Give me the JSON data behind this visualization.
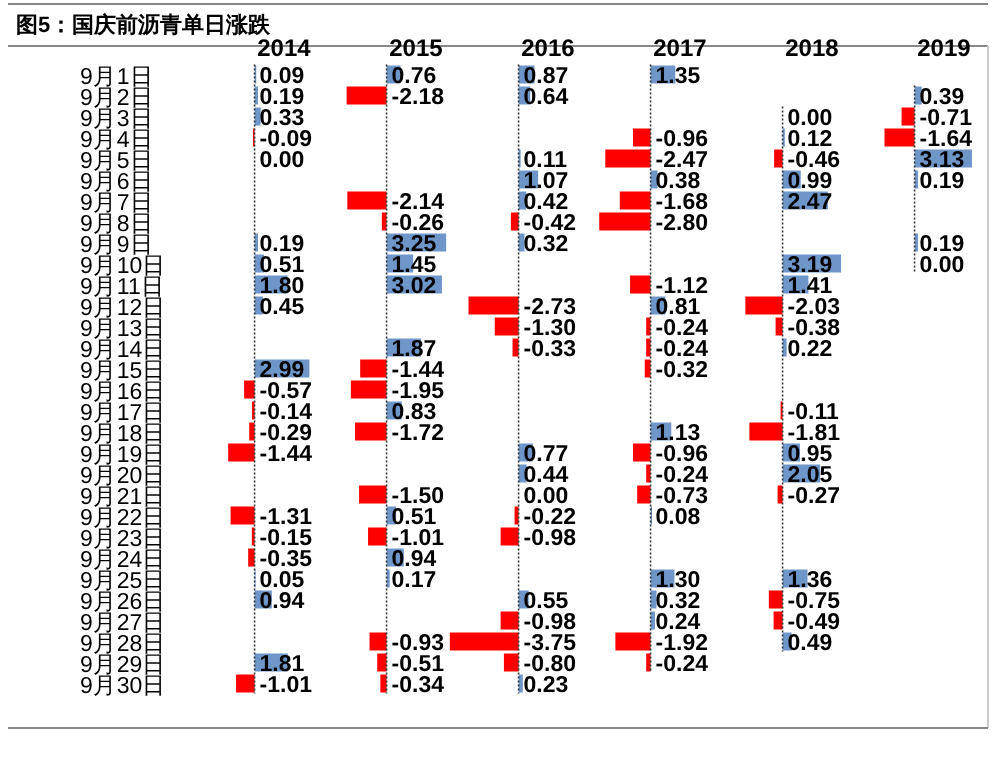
{
  "chart_data": [
    {
      "type": "bar",
      "orientation": "horizontal",
      "title": "图5：国庆前沥青单日涨跌",
      "subtitle": "2014",
      "tick_labels": "y",
      "ref_lines": [
        {
          "axis": "x",
          "value": 0,
          "line_style": "dotted",
          "color": "#333333"
        }
      ],
      "categories": [
        "9月1日",
        "9月2日",
        "9月3日",
        "9月4日",
        "9月5日",
        "9月6日",
        "9月7日",
        "9月8日",
        "9月9日",
        "9月10日",
        "9月11日",
        "9月12日",
        "9月13日",
        "9月14日",
        "9月15日",
        "9月16日",
        "9月17日",
        "9月18日",
        "9月19日",
        "9月20日",
        "9月21日",
        "9月22日",
        "9月23日",
        "9月24日",
        "9月25日",
        "9月26日",
        "9月27日",
        "9月28日",
        "9月29日",
        "9月30日"
      ],
      "values": [
        0.09,
        0.19,
        0.33,
        -0.09,
        0.0,
        null,
        null,
        null,
        0.19,
        0.51,
        1.8,
        0.45,
        null,
        null,
        2.99,
        -0.57,
        -0.14,
        -0.29,
        -1.44,
        null,
        null,
        -1.31,
        -0.15,
        -0.35,
        0.05,
        0.94,
        null,
        null,
        1.81,
        -1.01
      ],
      "value_labels": [
        "0.09",
        "0.19",
        "0.33",
        "-0.09",
        "0.00",
        null,
        null,
        null,
        "0.19",
        "0.51",
        "1.80",
        "0.45",
        null,
        null,
        "2.99",
        "-0.57",
        "-0.14",
        "-0.29",
        "-1.44",
        null,
        null,
        "-1.31",
        "-0.15",
        "-0.35",
        "0.05",
        "0.94",
        null,
        null,
        "1.81",
        "-1.01"
      ],
      "colors": [
        "#6f96c9",
        "#6f96c9",
        "#6f96c9",
        "#ff0000",
        "#6f96c9",
        null,
        null,
        null,
        "#6f96c9",
        "#6f96c9",
        "#6f96c9",
        "#6f96c9",
        null,
        null,
        "#6f96c9",
        "#ff0000",
        "#ff0000",
        "#ff0000",
        "#ff0000",
        null,
        null,
        "#ff0000",
        "#ff0000",
        "#ff0000",
        "#6f96c9",
        "#6f96c9",
        null,
        null,
        "#6f96c9",
        "#ff0000"
      ]
    },
    {
      "type": "bar",
      "orientation": "horizontal",
      "subtitle": "2015",
      "tick_labels": false,
      "ref_lines": [
        {
          "axis": "x",
          "value": 0,
          "line_style": "dotted",
          "color": "#333333"
        }
      ],
      "values": [
        0.76,
        -2.18,
        null,
        null,
        null,
        null,
        -2.14,
        -0.26,
        3.25,
        1.45,
        3.02,
        null,
        null,
        1.87,
        -1.44,
        -1.95,
        0.83,
        -1.72,
        null,
        null,
        -1.5,
        0.51,
        -1.01,
        0.94,
        0.17,
        null,
        null,
        -0.93,
        -0.51,
        -0.34
      ],
      "value_labels": [
        "0.76",
        "-2.18",
        null,
        null,
        null,
        null,
        "-2.14",
        "-0.26",
        "3.25",
        "1.45",
        "3.02",
        null,
        null,
        "1.87",
        "-1.44",
        "-1.95",
        "0.83",
        "-1.72",
        null,
        null,
        "-1.50",
        "0.51",
        "-1.01",
        "0.94",
        "0.17",
        null,
        null,
        "-0.93",
        "-0.51",
        "-0.34"
      ],
      "colors": [
        "#6f96c9",
        "#ff0000",
        null,
        null,
        null,
        null,
        "#ff0000",
        "#ff0000",
        "#6f96c9",
        "#6f96c9",
        "#6f96c9",
        null,
        null,
        "#6f96c9",
        "#ff0000",
        "#ff0000",
        "#6f96c9",
        "#ff0000",
        null,
        null,
        "#ff0000",
        "#6f96c9",
        "#ff0000",
        "#6f96c9",
        "#6f96c9",
        null,
        null,
        "#ff0000",
        "#ff0000",
        "#ff0000"
      ]
    },
    {
      "type": "bar",
      "orientation": "horizontal",
      "subtitle": "2016",
      "tick_labels": false,
      "ref_lines": [
        {
          "axis": "x",
          "value": 0,
          "line_style": "dotted",
          "color": "#333333"
        }
      ],
      "values": [
        0.87,
        0.64,
        null,
        null,
        0.11,
        1.07,
        0.42,
        -0.42,
        0.32,
        null,
        null,
        -2.73,
        -1.3,
        -0.33,
        null,
        null,
        null,
        null,
        0.77,
        0.44,
        0.0,
        -0.22,
        -0.98,
        null,
        null,
        0.55,
        -0.98,
        -3.75,
        -0.8,
        0.23
      ],
      "value_labels": [
        "0.87",
        "0.64",
        null,
        null,
        "0.11",
        "1.07",
        "0.42",
        "-0.42",
        "0.32",
        null,
        null,
        "-2.73",
        "-1.30",
        "-0.33",
        null,
        null,
        null,
        null,
        "0.77",
        "0.44",
        "0.00",
        "-0.22",
        "-0.98",
        null,
        null,
        "0.55",
        "-0.98",
        "-3.75",
        "-0.80",
        "0.23"
      ],
      "colors": [
        "#6f96c9",
        "#6f96c9",
        null,
        null,
        "#6f96c9",
        "#6f96c9",
        "#6f96c9",
        "#ff0000",
        "#6f96c9",
        null,
        null,
        "#ff0000",
        "#ff0000",
        "#ff0000",
        null,
        null,
        null,
        null,
        "#6f96c9",
        "#6f96c9",
        "#6f96c9",
        "#ff0000",
        "#ff0000",
        null,
        null,
        "#6f96c9",
        "#ff0000",
        "#ff0000",
        "#ff0000",
        "#6f96c9"
      ]
    },
    {
      "type": "bar",
      "orientation": "horizontal",
      "subtitle": "2017",
      "tick_labels": false,
      "ref_lines": [
        {
          "axis": "x",
          "value": 0,
          "line_style": "dotted",
          "color": "#333333"
        }
      ],
      "values": [
        1.35,
        null,
        null,
        -0.96,
        -2.47,
        0.38,
        -1.68,
        -2.8,
        null,
        null,
        -1.12,
        0.81,
        -0.24,
        -0.24,
        -0.32,
        null,
        null,
        1.13,
        -0.96,
        -0.24,
        -0.73,
        0.08,
        null,
        null,
        1.3,
        0.32,
        0.24,
        -1.92,
        -0.24,
        null
      ],
      "value_labels": [
        "1.35",
        null,
        null,
        "-0.96",
        "-2.47",
        "0.38",
        "-1.68",
        "-2.80",
        null,
        null,
        "-1.12",
        "0.81",
        "-0.24",
        "-0.24",
        "-0.32",
        null,
        null,
        "1.13",
        "-0.96",
        "-0.24",
        "-0.73",
        "0.08",
        null,
        null,
        "1.30",
        "0.32",
        "0.24",
        "-1.92",
        "-0.24",
        null
      ],
      "colors": [
        "#6f96c9",
        null,
        null,
        "#ff0000",
        "#ff0000",
        "#6f96c9",
        "#ff0000",
        "#ff0000",
        null,
        null,
        "#ff0000",
        "#6f96c9",
        "#ff0000",
        "#ff0000",
        "#ff0000",
        null,
        null,
        "#6f96c9",
        "#ff0000",
        "#ff0000",
        "#ff0000",
        "#6f96c9",
        null,
        null,
        "#6f96c9",
        "#6f96c9",
        "#6f96c9",
        "#ff0000",
        "#ff0000",
        null
      ]
    },
    {
      "type": "bar",
      "orientation": "horizontal",
      "subtitle": "2018",
      "tick_labels": false,
      "ref_lines": [
        {
          "axis": "x",
          "value": 0,
          "line_style": "dotted",
          "color": "#333333"
        }
      ],
      "values": [
        null,
        null,
        0.0,
        0.12,
        -0.46,
        0.99,
        2.47,
        null,
        null,
        3.19,
        1.41,
        -2.03,
        -0.38,
        0.22,
        null,
        null,
        -0.11,
        -1.81,
        0.95,
        2.05,
        -0.27,
        null,
        null,
        null,
        1.36,
        -0.75,
        -0.49,
        0.49,
        null,
        null
      ],
      "value_labels": [
        null,
        null,
        "0.00",
        "0.12",
        "-0.46",
        "0.99",
        "2.47",
        null,
        null,
        "3.19",
        "1.41",
        "-2.03",
        "-0.38",
        "0.22",
        null,
        null,
        "-0.11",
        "-1.81",
        "0.95",
        "2.05",
        "-0.27",
        null,
        null,
        null,
        "1.36",
        "-0.75",
        "-0.49",
        "0.49",
        null,
        null
      ],
      "colors": [
        null,
        null,
        "#6f96c9",
        "#6f96c9",
        "#ff0000",
        "#6f96c9",
        "#6f96c9",
        null,
        null,
        "#6f96c9",
        "#6f96c9",
        "#ff0000",
        "#ff0000",
        "#6f96c9",
        null,
        null,
        "#ff0000",
        "#ff0000",
        "#6f96c9",
        "#6f96c9",
        "#ff0000",
        null,
        null,
        null,
        "#6f96c9",
        "#ff0000",
        "#ff0000",
        "#6f96c9",
        null,
        null
      ]
    },
    {
      "type": "bar",
      "orientation": "horizontal",
      "subtitle": "2019",
      "tick_labels": false,
      "ref_lines": [
        {
          "axis": "x",
          "value": 0,
          "line_style": "dotted",
          "color": "#333333"
        }
      ],
      "values": [
        null,
        0.39,
        -0.71,
        -1.64,
        3.13,
        0.19,
        null,
        null,
        0.19,
        0.0,
        null,
        null,
        null,
        null,
        null,
        null,
        null,
        null,
        null,
        null,
        null,
        null,
        null,
        null,
        null,
        null,
        null,
        null,
        null,
        null
      ],
      "value_labels": [
        null,
        "0.39",
        "-0.71",
        "-1.64",
        "3.13",
        "0.19",
        null,
        null,
        "0.19",
        "0.00",
        null,
        null,
        null,
        null,
        null,
        null,
        null,
        null,
        null,
        null,
        null,
        null,
        null,
        null,
        null,
        null,
        null,
        null,
        null,
        null
      ],
      "colors": [
        null,
        "#6f96c9",
        "#ff0000",
        "#ff0000",
        "#6f96c9",
        "#6f96c9",
        null,
        null,
        "#6f96c9",
        "#6f96c9",
        null,
        null,
        null,
        null,
        null,
        null,
        null,
        null,
        null,
        null,
        null,
        null,
        null,
        null,
        null,
        null,
        null,
        null,
        null,
        null
      ]
    }
  ]
}
